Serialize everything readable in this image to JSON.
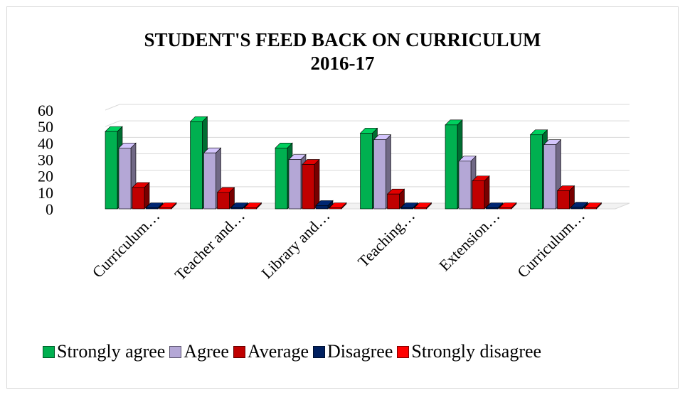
{
  "chart_data": {
    "type": "bar",
    "title": "STUDENT'S FEED BACK ON CURRICULUM",
    "subtitle": "2016-17",
    "categories": [
      "Curriculum…",
      "Teacher and…",
      "Library and…",
      "Teaching…",
      "Extension…",
      "Curriculum…"
    ],
    "series": [
      {
        "name": "Strongly agree",
        "color": "#00b050",
        "values": [
          47,
          53,
          37,
          46,
          51,
          45
        ]
      },
      {
        "name": "Agree",
        "color": "#b4a7d6",
        "values": [
          37,
          34,
          30,
          42,
          29,
          39
        ]
      },
      {
        "name": "Average",
        "color": "#c00000",
        "values": [
          13,
          10,
          27,
          9,
          17,
          11
        ]
      },
      {
        "name": "Disagree",
        "color": "#002060",
        "values": [
          0,
          0,
          2,
          0,
          0,
          1
        ]
      },
      {
        "name": "Strongly disagree",
        "color": "#ff0000",
        "values": [
          0,
          0,
          0,
          0,
          0,
          0
        ]
      }
    ],
    "yticks": [
      0,
      10,
      20,
      30,
      40,
      50,
      60
    ],
    "ylim": [
      0,
      60
    ],
    "grid": true,
    "legend_position": "bottom",
    "three_d": true
  }
}
